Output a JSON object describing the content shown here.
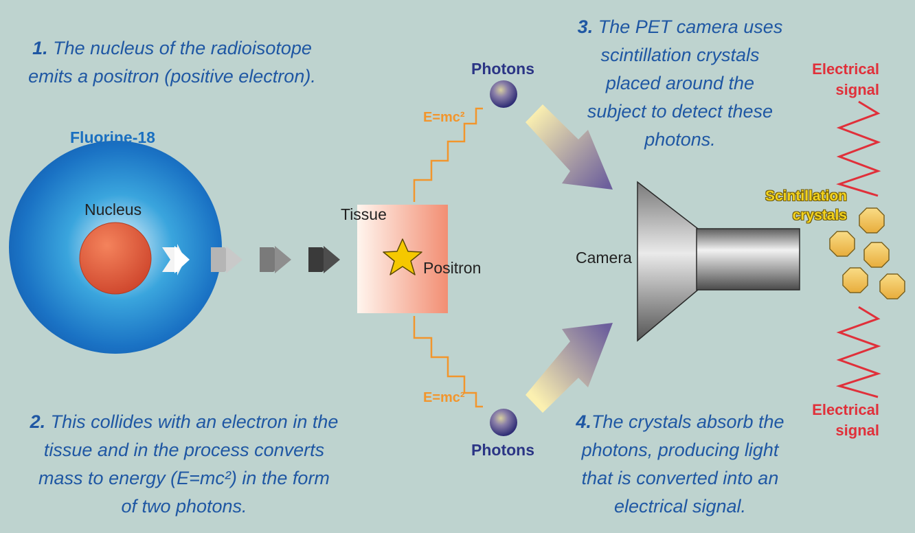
{
  "steps": {
    "step1": {
      "number": "1.",
      "lines": [
        "The nucleus of the radioisotope",
        "emits a positron (positive electron)."
      ]
    },
    "step2": {
      "number": "2.",
      "lines": [
        "This collides with an electron in the",
        "tissue and in the process converts",
        "mass to energy (E=mc²) in the form",
        "of two photons."
      ]
    },
    "step3": {
      "number": "3.",
      "lines": [
        "The PET camera uses",
        "scintillation crystals",
        "placed around the",
        "subject to detect these",
        "photons."
      ]
    },
    "step4": {
      "number": "4.",
      "lines": [
        "The crystals absorb the",
        "photons, producing light",
        "that is converted into an",
        "electrical signal."
      ]
    }
  },
  "labels": {
    "fluorine": "Fluorine-18",
    "nucleus": "Nucleus",
    "tissue": "Tissue",
    "positron": "Positron",
    "photons_top": "Photons",
    "photons_bottom": "Photons",
    "energy_top": "E=mc²",
    "energy_bottom": "E=mc²",
    "camera": "Camera",
    "scintillation_line1": "Scintillation",
    "scintillation_line2": "crystals",
    "electrical_top_line1": "Electrical",
    "electrical_top_line2": "signal",
    "electrical_bottom_line1": "Electrical",
    "electrical_bottom_line2": "signal"
  },
  "colors": {
    "background": "#bed3cf",
    "step_text": "#1f57a3",
    "fluorine_label": "#1a6fc0",
    "photon_label": "#2b3585",
    "energy_wave": "#f2952c",
    "signal": "#e0303a",
    "crystal": "#f2c04a",
    "atom": "#1d6fbf",
    "nucleus": "#e05a3a"
  },
  "icons": [
    "fluorine-atom",
    "nucleus",
    "positron-arrow",
    "tissue-block",
    "positron-star",
    "photon",
    "energy-wave",
    "light-arrow",
    "pet-camera",
    "scintillation-crystal",
    "electrical-signal-zigzag"
  ]
}
